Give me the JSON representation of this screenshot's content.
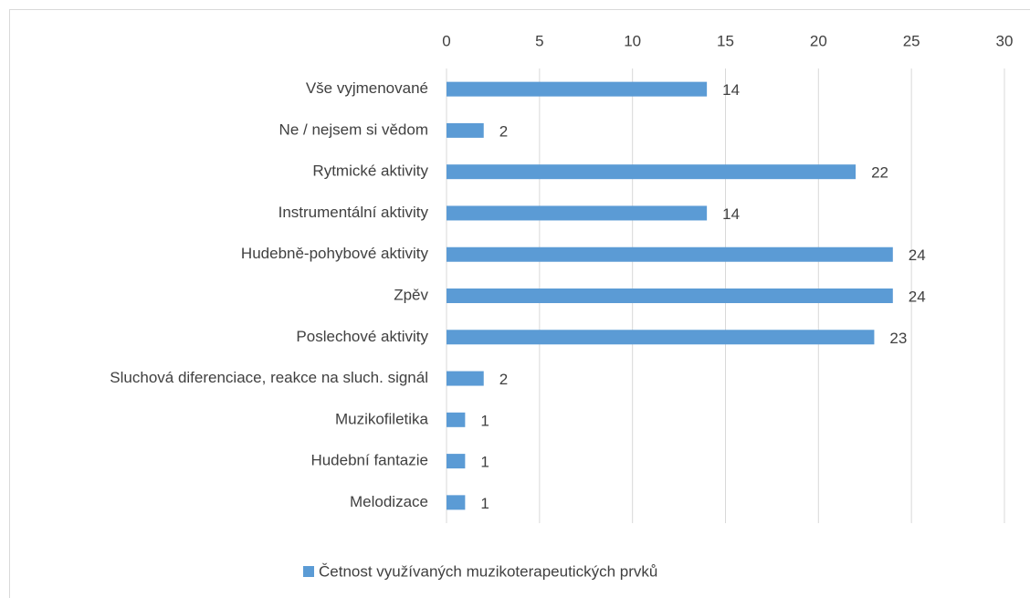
{
  "chart_data": {
    "type": "hbar",
    "categories": [
      "Vše vyjmenované",
      "Ne / nejsem si vědom",
      "Rytmické aktivity",
      "Instrumentální aktivity",
      "Hudebně-pohybové aktivity",
      "Zpěv",
      "Poslechové aktivity",
      "Sluchová diferenciace, reakce na sluch. signál",
      "Muzikofiletika",
      "Hudební fantazie",
      "Melodizace"
    ],
    "series": [
      {
        "name": "Četnost využívaných muzikoterapeutických prvků",
        "color": "#5b9bd5",
        "values": [
          14,
          2,
          22,
          14,
          24,
          24,
          23,
          2,
          1,
          1,
          1
        ]
      }
    ],
    "xlim": [
      0,
      30
    ],
    "xticks": [
      0,
      5,
      10,
      15,
      20,
      25,
      30
    ],
    "grid": true,
    "legend": "bottom"
  }
}
